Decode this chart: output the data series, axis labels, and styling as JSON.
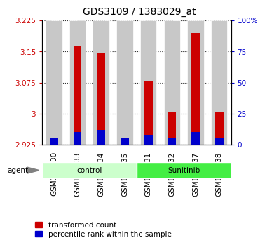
{
  "title": "GDS3109 / 1383029_at",
  "samples": [
    "GSM159830",
    "GSM159833",
    "GSM159834",
    "GSM159835",
    "GSM159831",
    "GSM159832",
    "GSM159837",
    "GSM159838"
  ],
  "red_values": [
    2.925,
    3.162,
    3.147,
    2.937,
    3.08,
    3.003,
    3.195,
    3.003
  ],
  "blue_pct": [
    5,
    10,
    12,
    5,
    8,
    6,
    10,
    6
  ],
  "y_min": 2.925,
  "y_max": 3.225,
  "y_ticks": [
    2.925,
    3.0,
    3.075,
    3.15,
    3.225
  ],
  "y_ticks_labels": [
    "2.925",
    "3",
    "3.075",
    "3.15",
    "3.225"
  ],
  "y2_ticks": [
    0,
    25,
    50,
    75,
    100
  ],
  "y2_ticks_labels": [
    "0",
    "25",
    "50",
    "75",
    "100%"
  ],
  "group_info": [
    {
      "start": 0,
      "end": 4,
      "label": "control",
      "color": "#ccffcc"
    },
    {
      "start": 4,
      "end": 8,
      "label": "Sunitinib",
      "color": "#44ee44"
    }
  ],
  "bar_bg_color": "#c8c8c8",
  "legend_red": "transformed count",
  "legend_blue": "percentile rank within the sample",
  "agent_label": "agent",
  "red_color": "#cc0000",
  "blue_color": "#0000cc",
  "title_fontsize": 10,
  "tick_fontsize": 7.5,
  "label_fontsize": 7.5,
  "legend_fontsize": 7.5
}
